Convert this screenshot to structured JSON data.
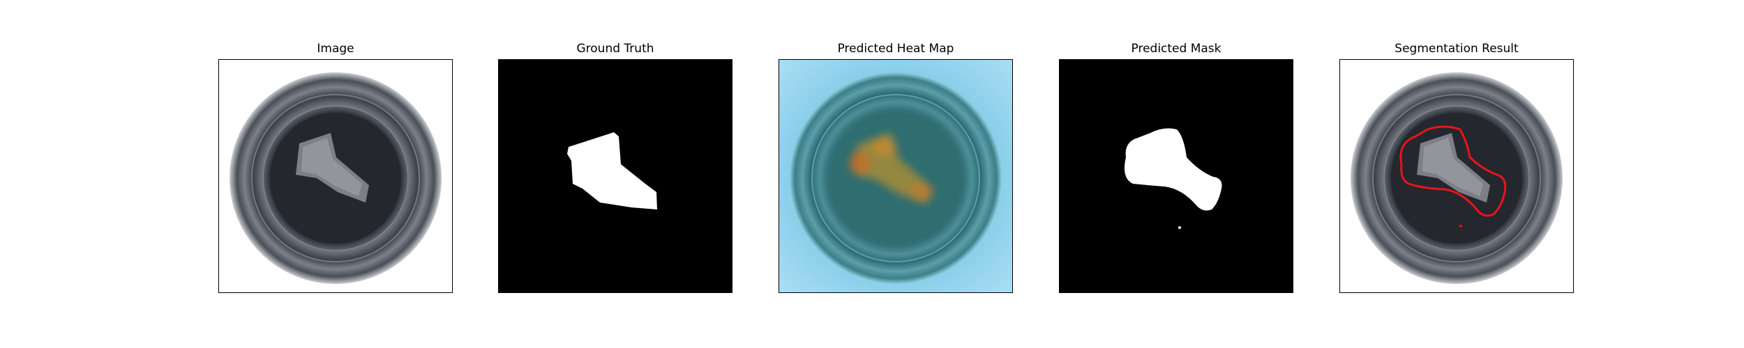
{
  "panels": [
    {
      "title": "Image"
    },
    {
      "title": "Ground Truth"
    },
    {
      "title": "Predicted Heat Map"
    },
    {
      "title": "Predicted Mask"
    },
    {
      "title": "Segmentation Result"
    }
  ],
  "colors": {
    "frame": "#000000",
    "mask_background": "#000000",
    "mask_foreground": "#ffffff",
    "contour": "#e8141c",
    "heat_cold": "#8fd3f4",
    "heat_hot": "#c97a1e"
  }
}
